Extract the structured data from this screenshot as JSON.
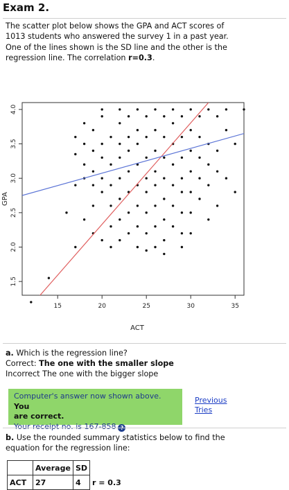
{
  "title": "Exam 2.",
  "intro": {
    "line1": "The scatter plot below shows the GPA and ACT scores of",
    "line2": "1013 students who answered the survey 1 in a past year.",
    "line3": "One of the lines shown is the SD line and the other is the",
    "line4_prefix": "regression line. The correlation ",
    "line4_bold": "r=0.3",
    "line4_suffix": "."
  },
  "chart_data": {
    "type": "scatter",
    "xlabel": "ACT",
    "ylabel": "GPA",
    "x_ticks": [
      "15",
      "20",
      "25",
      "30",
      "35"
    ],
    "y_ticks": [
      "1.5",
      "2.0",
      "2.5",
      "3.0",
      "3.5",
      "4.0"
    ],
    "xlim": [
      11,
      36
    ],
    "ylim": [
      1.3,
      4.1
    ],
    "colors": {
      "sd_line": "#e06060",
      "regression_line": "#5b74d6",
      "points": "#111111"
    },
    "series": [
      {
        "points": [
          [
            12,
            1.2
          ],
          [
            14,
            1.55
          ],
          [
            17,
            2.0
          ],
          [
            19,
            2.6
          ],
          [
            18,
            2.4
          ],
          [
            19,
            2.2
          ],
          [
            20,
            2.1
          ],
          [
            16,
            2.5
          ],
          [
            17,
            2.9
          ],
          [
            18,
            3.0
          ],
          [
            17,
            3.35
          ],
          [
            17,
            3.6
          ],
          [
            18,
            3.5
          ],
          [
            18,
            3.2
          ],
          [
            19,
            3.1
          ],
          [
            19,
            3.4
          ],
          [
            19,
            3.7
          ],
          [
            20,
            3.3
          ],
          [
            20,
            3.5
          ],
          [
            20,
            3.9
          ],
          [
            21,
            3.6
          ],
          [
            21,
            3.2
          ],
          [
            21,
            2.9
          ],
          [
            21,
            2.6
          ],
          [
            21,
            2.3
          ],
          [
            22,
            3.8
          ],
          [
            22,
            3.5
          ],
          [
            22,
            3.3
          ],
          [
            22,
            3.0
          ],
          [
            22,
            2.7
          ],
          [
            22,
            2.4
          ],
          [
            22,
            2.1
          ],
          [
            23,
            3.9
          ],
          [
            23,
            3.6
          ],
          [
            23,
            3.4
          ],
          [
            23,
            3.1
          ],
          [
            23,
            2.8
          ],
          [
            23,
            2.5
          ],
          [
            23,
            2.2
          ],
          [
            24,
            4.0
          ],
          [
            24,
            3.7
          ],
          [
            24,
            3.5
          ],
          [
            24,
            3.2
          ],
          [
            24,
            2.9
          ],
          [
            24,
            2.6
          ],
          [
            24,
            2.3
          ],
          [
            25,
            3.9
          ],
          [
            25,
            3.6
          ],
          [
            25,
            3.3
          ],
          [
            25,
            3.0
          ],
          [
            25,
            2.8
          ],
          [
            25,
            2.5
          ],
          [
            25,
            2.2
          ],
          [
            26,
            4.0
          ],
          [
            26,
            3.7
          ],
          [
            26,
            3.4
          ],
          [
            26,
            3.1
          ],
          [
            26,
            2.9
          ],
          [
            26,
            2.6
          ],
          [
            26,
            2.3
          ],
          [
            27,
            3.9
          ],
          [
            27,
            3.6
          ],
          [
            27,
            3.3
          ],
          [
            27,
            3.0
          ],
          [
            27,
            2.7
          ],
          [
            27,
            2.4
          ],
          [
            27,
            2.1
          ],
          [
            28,
            4.0
          ],
          [
            28,
            3.8
          ],
          [
            28,
            3.5
          ],
          [
            28,
            3.2
          ],
          [
            28,
            2.9
          ],
          [
            28,
            2.6
          ],
          [
            28,
            2.3
          ],
          [
            29,
            3.9
          ],
          [
            29,
            3.6
          ],
          [
            29,
            3.3
          ],
          [
            29,
            3.0
          ],
          [
            29,
            2.8
          ],
          [
            29,
            2.5
          ],
          [
            29,
            2.2
          ],
          [
            30,
            4.0
          ],
          [
            30,
            3.7
          ],
          [
            30,
            3.4
          ],
          [
            30,
            3.1
          ],
          [
            30,
            2.8
          ],
          [
            30,
            2.5
          ],
          [
            31,
            3.9
          ],
          [
            31,
            3.6
          ],
          [
            31,
            3.3
          ],
          [
            31,
            3.0
          ],
          [
            31,
            2.7
          ],
          [
            32,
            4.0
          ],
          [
            32,
            3.5
          ],
          [
            32,
            3.2
          ],
          [
            32,
            2.9
          ],
          [
            33,
            3.9
          ],
          [
            33,
            3.4
          ],
          [
            33,
            3.1
          ],
          [
            34,
            4.0
          ],
          [
            34,
            3.7
          ],
          [
            35,
            3.5
          ],
          [
            34,
            3.0
          ],
          [
            33,
            2.6
          ],
          [
            35,
            2.8
          ],
          [
            36,
            4.0
          ],
          [
            20,
            2.8
          ],
          [
            21,
            2.0
          ],
          [
            24,
            2.0
          ],
          [
            26,
            2.0
          ],
          [
            29,
            2.0
          ],
          [
            30,
            2.2
          ],
          [
            32,
            2.4
          ],
          [
            27,
            1.9
          ],
          [
            25,
            1.95
          ],
          [
            19,
            2.9
          ],
          [
            20,
            3.0
          ],
          [
            18,
            3.8
          ],
          [
            22,
            4.0
          ],
          [
            20,
            4.0
          ]
        ]
      }
    ],
    "lines": [
      {
        "name": "SD line",
        "from": [
          12,
          1.15
        ],
        "to": [
          32,
          4.1
        ]
      },
      {
        "name": "Regression line",
        "from": [
          11,
          2.75
        ],
        "to": [
          36,
          3.65
        ]
      }
    ]
  },
  "question_a": {
    "prompt_bold": "a.",
    "prompt": " Which is the regression line?",
    "correct_label": "Correct: ",
    "correct_answer": "The one with the smaller slope",
    "incorrect_line": "Incorrect The one with the bigger slope"
  },
  "feedback": {
    "line1": "Computer's answer now shown above. ",
    "line1_bold": "You",
    "line2_bold": "are correct.",
    "receipt": "Your receipt no. is 167-858",
    "help_glyph": "?",
    "previous_line1": "Previous",
    "previous_line2": "Tries"
  },
  "question_b": {
    "prompt_bold": "b.",
    "prompt_line1": " Use the rounded summary statistics below to find the",
    "prompt_line2": "equation for the regression line:"
  },
  "stats_table": {
    "header": [
      "",
      "Average",
      "SD"
    ],
    "row": [
      "ACT",
      "27",
      "4"
    ],
    "extra": "r = 0.3"
  }
}
